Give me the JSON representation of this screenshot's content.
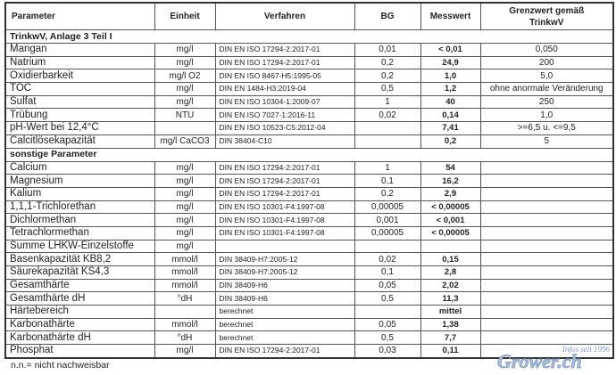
{
  "headers": {
    "parameter": "Parameter",
    "einheit": "Einheit",
    "verfahren": "Verfahren",
    "bg": "BG",
    "messwert": "Messwert",
    "grenzwert_line1": "Grenzwert gemäß",
    "grenzwert_line2": "TrinkwV"
  },
  "sections": [
    {
      "title": "TrinkwV, Anlage 3 Teil I",
      "rows": [
        [
          "Mangan",
          "mg/l",
          "DIN EN ISO 17294-2:2017-01",
          "0,01",
          "< 0,01",
          "0,050"
        ],
        [
          "Natrium",
          "mg/l",
          "DIN EN ISO 17294-2:2017-01",
          "0,2",
          "24,9",
          "200"
        ],
        [
          "Oxidierbarkeit",
          "mg/l O2",
          "DIN EN ISO 8467-H5:1995-05",
          "0,2",
          "1,0",
          "5,0"
        ],
        [
          "TOC",
          "mg/l",
          "DIN EN 1484-H3:2019-04",
          "0,5",
          "1,2",
          "ohne anormale Veränderung"
        ],
        [
          "Sulfat",
          "mg/l",
          "DIN EN ISO 10304-1:2009-07",
          "1",
          "40",
          "250"
        ],
        [
          "Trübung",
          "NTU",
          "DIN EN ISO 7027-1:2016-11",
          "0,02",
          "0,14",
          "1,0"
        ],
        [
          "pH-Wert bei 12,4°C",
          "",
          "DIN EN ISO 10523-C5:2012-04",
          "",
          "7,41",
          ">=6,5 u. <=9,5"
        ],
        [
          "Calcitlösekapazität",
          "mg/l CaCO3",
          "DIN 38404-C10",
          "",
          "0,2",
          "5"
        ]
      ]
    },
    {
      "title": "sonstige Parameter",
      "rows": [
        [
          "Calcium",
          "mg/l",
          "DIN EN ISO 17294-2:2017-01",
          "1",
          "54",
          ""
        ],
        [
          "Magnesium",
          "mg/l",
          "DIN EN ISO 17294-2:2017-01",
          "0,1",
          "16,2",
          ""
        ],
        [
          "Kalium",
          "mg/l",
          "DIN EN ISO 17294-2:2017-01",
          "0,2",
          "2,9",
          ""
        ],
        [
          "1,1,1-Trichlorethan",
          "mg/l",
          "DIN EN ISO 10301-F4:1997-08",
          "0,00005",
          "< 0,00005",
          ""
        ],
        [
          "Dichlormethan",
          "mg/l",
          "DIN EN ISO 10301-F4:1997-08",
          "0,001",
          "< 0,001",
          ""
        ],
        [
          "Tetrachlormethan",
          "mg/l",
          "DIN EN ISO 10301-F4:1997-08",
          "0,00005",
          "< 0,00005",
          ""
        ],
        [
          "Summe LHKW-Einzelstoffe",
          "mg/l",
          "",
          "",
          "",
          ""
        ],
        [
          "Basenkapazität KB8,2",
          "mmol/l",
          "DIN 38409-H7:2005-12",
          "0,02",
          "0,15",
          ""
        ],
        [
          "Säurekapazität KS4,3",
          "mmol/l",
          "DIN 38409-H7:2005-12",
          "0,1",
          "2,8",
          ""
        ],
        [
          "Gesamthärte",
          "mmol/l",
          "DIN 38409-H6",
          "0,05",
          "2,02",
          ""
        ],
        [
          "Gesamthärte dH",
          "°dH",
          "DIN 38409-H6",
          "0,5",
          "11,3",
          ""
        ],
        [
          "Härtebereich",
          "",
          "berechnet",
          "",
          "mittel",
          ""
        ],
        [
          "Karbonathärte",
          "mmol/l",
          "berechnet",
          "0,05",
          "1,38",
          ""
        ],
        [
          "Karbonathärte dH",
          "°dH",
          "berechnet",
          "0,5",
          "7,7",
          ""
        ],
        [
          "Phosphat",
          "mg/l",
          "DIN EN ISO 17294-2:2017-01",
          "0,03",
          "0,11",
          ""
        ]
      ]
    }
  ],
  "footnote": "n.n.= nicht nachweisbar",
  "watermark": {
    "line1": "Infos seit 1996",
    "line2": "Grower.ch",
    "color": "#7f9cc4"
  }
}
